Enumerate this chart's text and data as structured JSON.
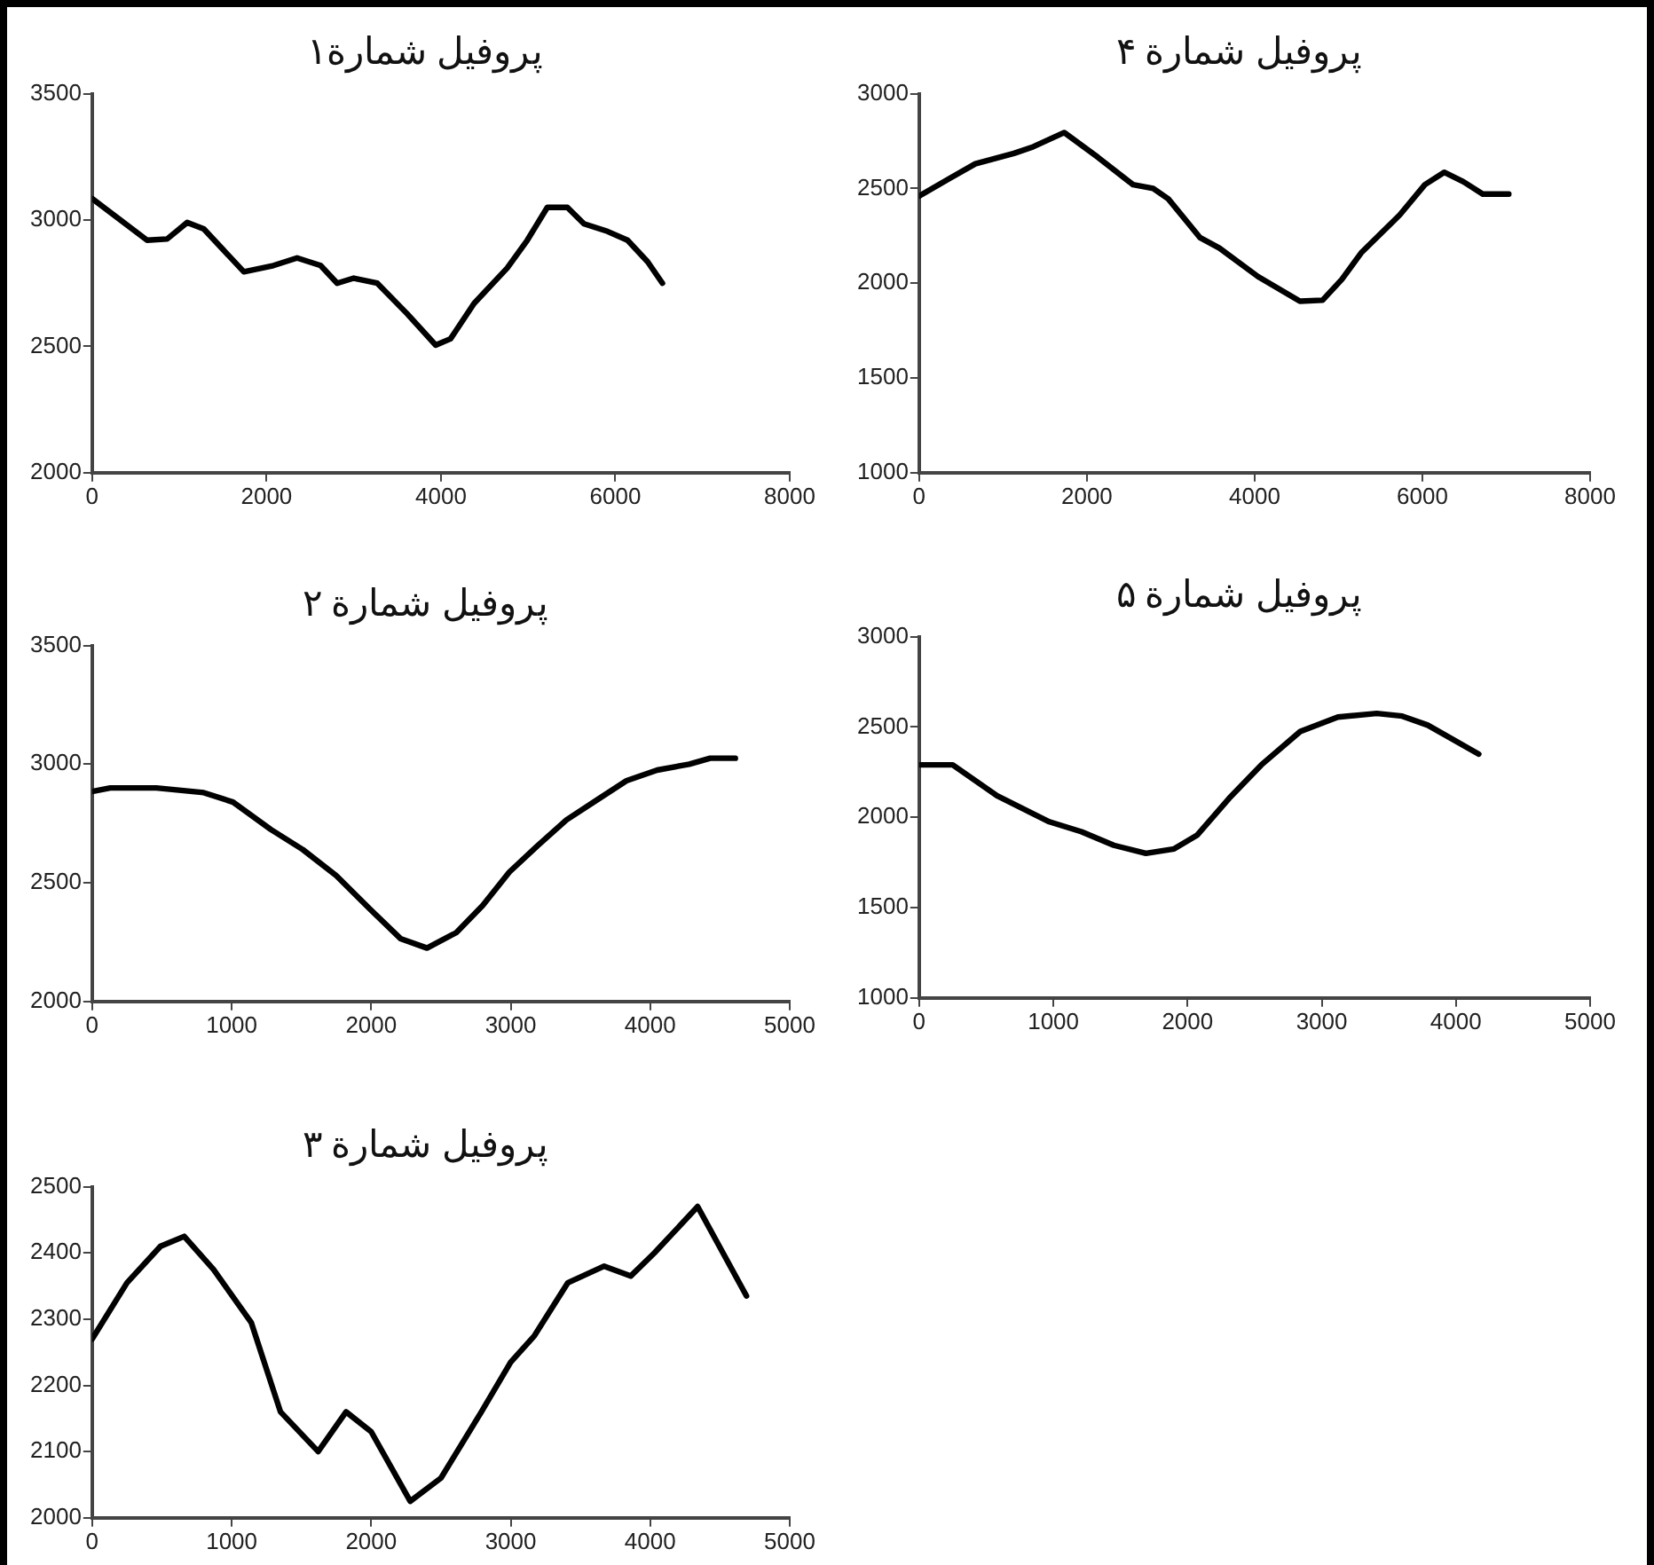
{
  "chart_data": [
    {
      "type": "line",
      "title": "پروفیل شمارة۱",
      "color": "#000000",
      "marker": "none",
      "grid": false,
      "legend": false,
      "x": [
        0,
        630,
        860,
        1090,
        1280,
        1740,
        2080,
        2350,
        2620,
        2810,
        3000,
        3270,
        3610,
        3940,
        4110,
        4380,
        4760,
        4990,
        5220,
        5450,
        5640,
        5910,
        6140,
        6370,
        6540
      ],
      "values": [
        3085,
        2920,
        2925,
        2990,
        2965,
        2795,
        2820,
        2850,
        2820,
        2750,
        2770,
        2750,
        2630,
        2505,
        2530,
        2670,
        2810,
        2920,
        3050,
        3050,
        2985,
        2955,
        2920,
        2835,
        2750
      ],
      "xlim": [
        0,
        8000
      ],
      "xticks": [
        0,
        2000,
        4000,
        6000,
        8000
      ],
      "ylim": [
        2000,
        3500
      ],
      "yticks": [
        2000,
        2500,
        3000,
        3500
      ]
    },
    {
      "type": "line",
      "title": "پروفیل شمارة ۴",
      "color": "#000000",
      "marker": "none",
      "grid": false,
      "legend": false,
      "x": [
        0,
        370,
        670,
        1130,
        1360,
        1730,
        2130,
        2550,
        2790,
        2970,
        3350,
        3580,
        4040,
        4540,
        4810,
        5040,
        5270,
        5730,
        6030,
        6260,
        6490,
        6720,
        7030
      ],
      "values": [
        2460,
        2555,
        2630,
        2685,
        2720,
        2795,
        2665,
        2520,
        2500,
        2445,
        2240,
        2185,
        2035,
        1905,
        1910,
        2020,
        2160,
        2360,
        2520,
        2585,
        2535,
        2470,
        2470
      ],
      "xlim": [
        0,
        8000
      ],
      "xticks": [
        0,
        2000,
        4000,
        6000,
        8000
      ],
      "ylim": [
        1000,
        3000
      ],
      "yticks": [
        1000,
        1500,
        2000,
        2500,
        3000
      ]
    },
    {
      "type": "line",
      "title": "پروفیل شمارة ۲",
      "color": "#000000",
      "marker": "none",
      "grid": false,
      "legend": false,
      "x": [
        0,
        130,
        460,
        800,
        1010,
        1280,
        1510,
        1750,
        1990,
        2210,
        2400,
        2610,
        2800,
        2990,
        3190,
        3400,
        3620,
        3830,
        4050,
        4280,
        4430,
        4610
      ],
      "values": [
        2885,
        2900,
        2900,
        2880,
        2840,
        2725,
        2640,
        2530,
        2390,
        2265,
        2225,
        2290,
        2405,
        2545,
        2655,
        2765,
        2850,
        2930,
        2975,
        3000,
        3025,
        3025
      ],
      "xlim": [
        0,
        5000
      ],
      "xticks": [
        0,
        1000,
        2000,
        3000,
        4000,
        5000
      ],
      "ylim": [
        2000,
        3500
      ],
      "yticks": [
        2000,
        2500,
        3000,
        3500
      ]
    },
    {
      "type": "line",
      "title": "پروفیل شمارة ۵",
      "color": "#000000",
      "marker": "none",
      "grid": false,
      "legend": false,
      "x": [
        0,
        250,
        580,
        970,
        1210,
        1450,
        1690,
        1900,
        2070,
        2310,
        2550,
        2840,
        3120,
        3410,
        3600,
        3790,
        4170
      ],
      "values": [
        2290,
        2290,
        2120,
        1975,
        1920,
        1845,
        1800,
        1825,
        1900,
        2105,
        2290,
        2475,
        2555,
        2575,
        2560,
        2510,
        2350
      ],
      "xlim": [
        0,
        5000
      ],
      "xticks": [
        0,
        1000,
        2000,
        3000,
        4000,
        5000
      ],
      "ylim": [
        1000,
        3000
      ],
      "yticks": [
        1000,
        1500,
        2000,
        2500,
        3000
      ]
    },
    {
      "type": "line",
      "title": "پروفیل شمارة ۳",
      "color": "#000000",
      "marker": "none",
      "grid": false,
      "legend": false,
      "x": [
        0,
        250,
        490,
        660,
        870,
        1140,
        1350,
        1620,
        1820,
        2000,
        2280,
        2500,
        2790,
        3000,
        3170,
        3410,
        3670,
        3860,
        4030,
        4340,
        4690
      ],
      "values": [
        2270,
        2355,
        2410,
        2425,
        2375,
        2295,
        2160,
        2100,
        2160,
        2130,
        2025,
        2060,
        2160,
        2235,
        2275,
        2355,
        2380,
        2365,
        2400,
        2470,
        2335
      ],
      "xlim": [
        0,
        5000
      ],
      "xticks": [
        0,
        1000,
        2000,
        3000,
        4000,
        5000
      ],
      "ylim": [
        2000,
        2500
      ],
      "yticks": [
        2000,
        2100,
        2200,
        2300,
        2400,
        2500
      ]
    }
  ]
}
